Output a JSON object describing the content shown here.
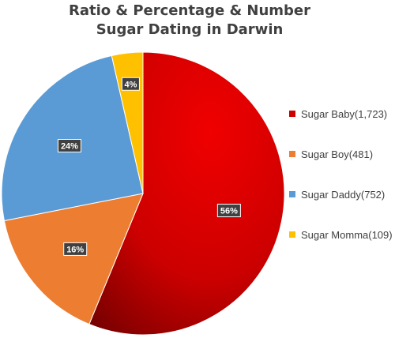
{
  "chart_data": {
    "type": "pie",
    "title_lines": [
      "Ratio & Percentage & Number",
      "Sugar Dating in Darwin"
    ],
    "slices": [
      {
        "name": "Sugar Baby",
        "value": 1723,
        "legend": "Sugar Baby(1,723)",
        "label": "56%",
        "color": "#cc0000"
      },
      {
        "name": "Sugar Boy",
        "value": 481,
        "legend": "Sugar Boy(481)",
        "label": "16%",
        "color": "#ed7d31"
      },
      {
        "name": "Sugar Daddy",
        "value": 752,
        "legend": "Sugar Daddy(752)",
        "label": "24%",
        "color": "#5b9bd5"
      },
      {
        "name": "Sugar Momma",
        "value": 109,
        "legend": "Sugar Momma(109)",
        "label": "4%",
        "color": "#ffc000"
      }
    ],
    "start_angle": "12 o'clock",
    "direction": "clockwise",
    "legend_position": "right"
  }
}
